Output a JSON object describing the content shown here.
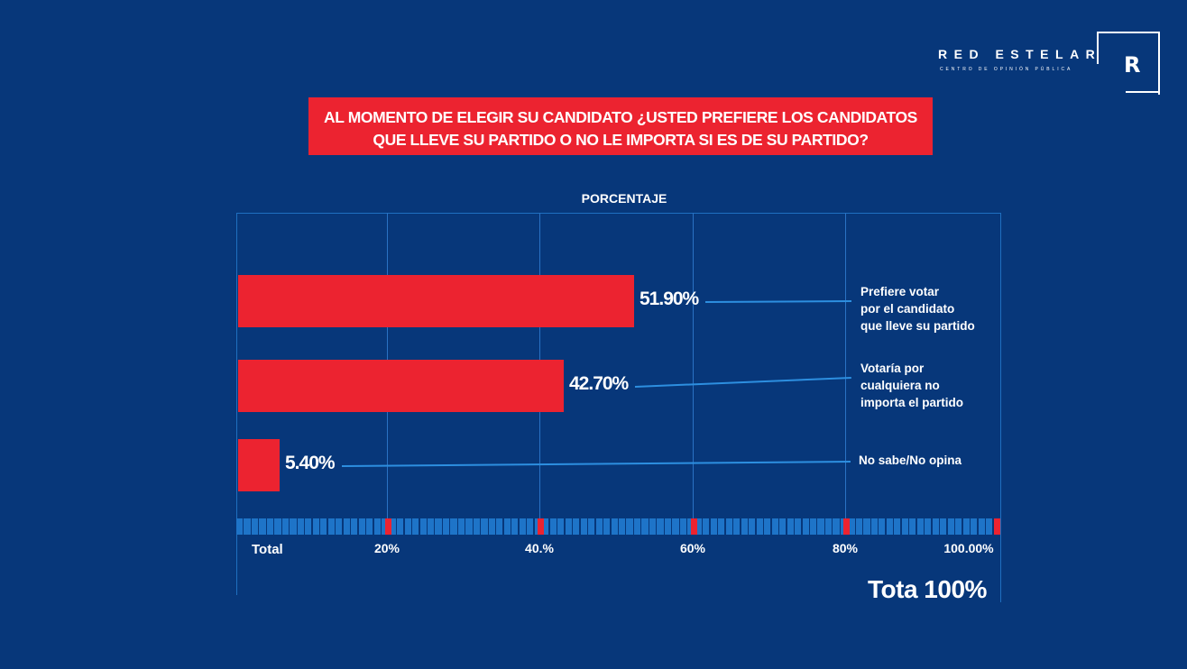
{
  "brand": {
    "name": "RED ESTELAR",
    "subtitle": "CENTRO DE OPINIÓN PÚBLICA",
    "logo_letter": "R"
  },
  "chart_data": {
    "type": "bar",
    "orientation": "horizontal",
    "title": "AL MOMENTO DE ELEGIR SU CANDIDATO ¿USTED PREFIERE LOS CANDIDATOS QUE LLEVE SU PARTIDO O NO LE IMPORTA SI ES DE SU PARTIDO?",
    "title_lines": [
      "AL MOMENTO DE ELEGIR SU CANDIDATO ¿USTED PREFIERE LOS CANDIDATOS",
      "QUE LLEVE SU PARTIDO O NO LE IMPORTA SI ES DE SU PARTIDO?"
    ],
    "axis_title": "PORCENTAJE",
    "xlim": [
      0,
      100
    ],
    "bars": [
      {
        "value": 51.9,
        "value_label": "51.90%",
        "category_lines": [
          "Prefiere votar",
          "por el candidato",
          "que lleve su partido"
        ]
      },
      {
        "value": 42.7,
        "value_label": "42.70%",
        "category_lines": [
          "Votaría por",
          "cualquiera no",
          "importa el partido"
        ]
      },
      {
        "value": 5.4,
        "value_label": "5.40%",
        "category_lines": [
          "No sabe/No opina"
        ]
      }
    ],
    "ticks": [
      {
        "value": 0,
        "label": "Total"
      },
      {
        "value": 20,
        "label": "20%"
      },
      {
        "value": 40,
        "label": "40.%"
      },
      {
        "value": 60,
        "label": "60%"
      },
      {
        "value": 80,
        "label": "80%"
      },
      {
        "value": 100,
        "label": "100.00%"
      }
    ],
    "total_label": "Tota 100%",
    "colors": {
      "background": "#07377a",
      "bar": "#ec2330",
      "grid": "#2a72c4",
      "scale": "#1e74c8",
      "leader": "#2d8fe0"
    }
  }
}
